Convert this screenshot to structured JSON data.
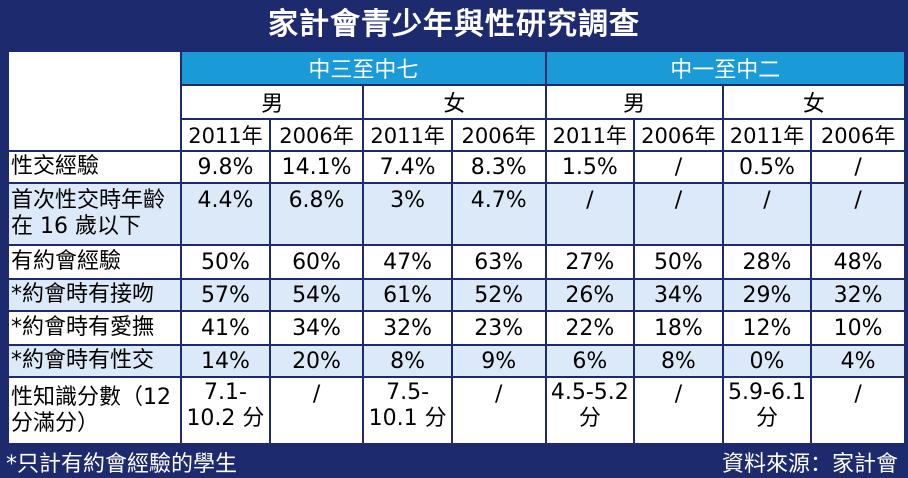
{
  "title": "家計會青少年與性研究調查",
  "groups": [
    "中三至中七",
    "中一至中二"
  ],
  "genders": [
    "男",
    "女",
    "男",
    "女"
  ],
  "years": [
    "2011年",
    "2006年",
    "2011年",
    "2006年",
    "2011年",
    "2006年",
    "2011年",
    "2006年"
  ],
  "rows": [
    {
      "label": "性交經驗",
      "cells": [
        "9.8%",
        "14.1%",
        "7.4%",
        "8.3%",
        "1.5%",
        "/",
        "0.5%",
        "/"
      ]
    },
    {
      "label": "首次性交時年齡在 16 歲以下",
      "cells": [
        "4.4%",
        "6.8%",
        "3%",
        "4.7%",
        "/",
        "/",
        "/",
        "/"
      ]
    },
    {
      "label": "有約會經驗",
      "cells": [
        "50%",
        "60%",
        "47%",
        "63%",
        "27%",
        "50%",
        "28%",
        "48%"
      ]
    },
    {
      "label": "*約會時有接吻",
      "cells": [
        "57%",
        "54%",
        "61%",
        "52%",
        "26%",
        "34%",
        "29%",
        "32%"
      ]
    },
    {
      "label": "*約會時有愛撫",
      "cells": [
        "41%",
        "34%",
        "32%",
        "23%",
        "22%",
        "18%",
        "12%",
        "10%"
      ]
    },
    {
      "label": "*約會時有性交",
      "cells": [
        "14%",
        "20%",
        "8%",
        "9%",
        "6%",
        "8%",
        "0%",
        "4%"
      ]
    },
    {
      "label": "性知識分數（12 分滿分）",
      "cells": [
        "7.1-10.2 分",
        "/",
        "7.5-10.1 分",
        "/",
        "4.5-5.2 分",
        "/",
        "5.9-6.1 分",
        "/"
      ]
    }
  ],
  "footnote": "*只計有約會經驗的學生",
  "source": "資料來源：家計會"
}
